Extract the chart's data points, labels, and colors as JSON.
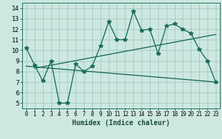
{
  "title": "",
  "xlabel": "Humidex (Indice chaleur)",
  "bg_color": "#cce8e0",
  "grid_color": "#a8ccc4",
  "line_color": "#1a6b5a",
  "xlim": [
    -0.5,
    23.5
  ],
  "ylim": [
    4.5,
    14.5
  ],
  "xticks": [
    0,
    1,
    2,
    3,
    4,
    5,
    6,
    7,
    8,
    9,
    10,
    11,
    12,
    13,
    14,
    15,
    16,
    17,
    18,
    19,
    20,
    21,
    22,
    23
  ],
  "yticks": [
    5,
    6,
    7,
    8,
    9,
    10,
    11,
    12,
    13,
    14
  ],
  "main_x": [
    0,
    1,
    2,
    3,
    4,
    5,
    6,
    7,
    8,
    9,
    10,
    11,
    12,
    13,
    14,
    15,
    16,
    17,
    18,
    19,
    20,
    21,
    22,
    23
  ],
  "main_y": [
    10.2,
    8.6,
    7.1,
    9.0,
    5.0,
    5.0,
    8.7,
    8.0,
    8.5,
    10.4,
    12.7,
    11.0,
    11.0,
    13.7,
    11.9,
    12.0,
    9.7,
    12.3,
    12.5,
    12.0,
    11.6,
    10.1,
    9.0,
    7.0
  ],
  "trend1_x": [
    1,
    23
  ],
  "trend1_y": [
    8.3,
    11.5
  ],
  "trend2_x": [
    0,
    23
  ],
  "trend2_y": [
    8.5,
    7.0
  ],
  "xlabel_fontsize": 7,
  "tick_fontsize": 5.5,
  "ytick_fontsize": 6.5
}
